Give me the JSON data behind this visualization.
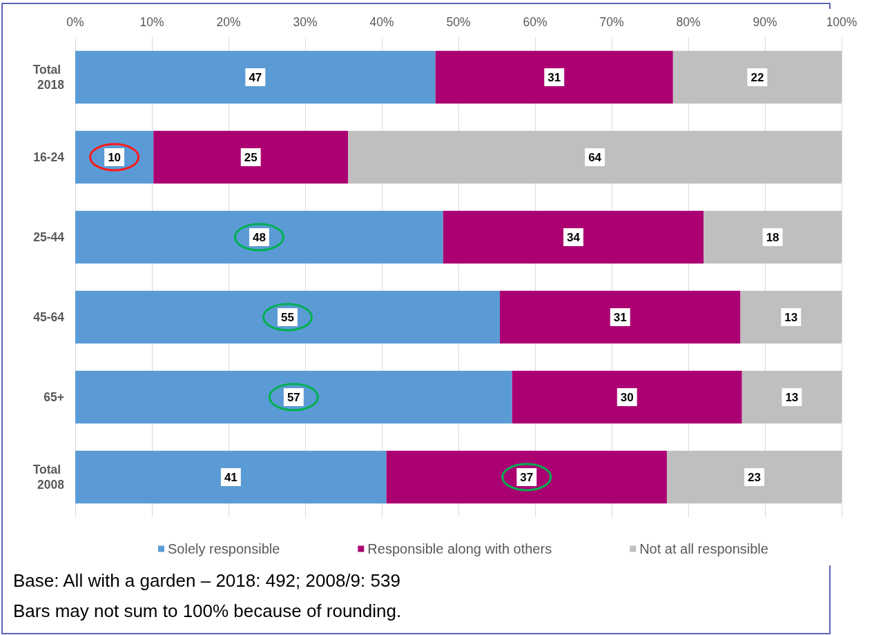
{
  "chart_data": {
    "type": "bar",
    "orientation": "horizontal",
    "stacked": true,
    "categories": [
      "Total 2018",
      "16-24",
      "25-44",
      "45-64",
      "65+",
      "Total 2008"
    ],
    "series": [
      {
        "name": "Solely responsible",
        "color": "#5b9bd5",
        "values": [
          47.0,
          10.2,
          48.0,
          55.4,
          57.0,
          40.6
        ],
        "value_labels": [
          "47",
          "10",
          "48",
          "55",
          "57",
          "41"
        ]
      },
      {
        "name": "Responsible along with others",
        "color": "#ab0072",
        "values": [
          31.0,
          25.4,
          34.0,
          31.4,
          30.0,
          36.6
        ],
        "value_labels": [
          "31",
          "25",
          "34",
          "31",
          "30",
          "37"
        ]
      },
      {
        "name": "Not at all responsible",
        "color": "#bfbfbf",
        "values": [
          22.0,
          64.4,
          18.0,
          13.2,
          13.0,
          22.8
        ],
        "value_labels": [
          "22",
          "64",
          "18",
          "13",
          "13",
          "23"
        ]
      }
    ],
    "xlim": [
      0,
      100
    ],
    "xticks": [
      {
        "value": 0,
        "label": "0%"
      },
      {
        "value": 10,
        "label": "10%"
      },
      {
        "value": 20,
        "label": "20%"
      },
      {
        "value": 30,
        "label": "30%"
      },
      {
        "value": 40,
        "label": "40%"
      },
      {
        "value": 50,
        "label": "50%"
      },
      {
        "value": 60,
        "label": "60%"
      },
      {
        "value": 70,
        "label": "70%"
      },
      {
        "value": 80,
        "label": "80%"
      },
      {
        "value": 90,
        "label": "90%"
      },
      {
        "value": 100,
        "label": "100%"
      }
    ],
    "grid": "x",
    "legend": "bottom",
    "annotations": [
      "Base: All with a garden – 2018: 492; 2008/9: 539",
      "Bars may not sum to 100% because of rounding."
    ]
  }
}
